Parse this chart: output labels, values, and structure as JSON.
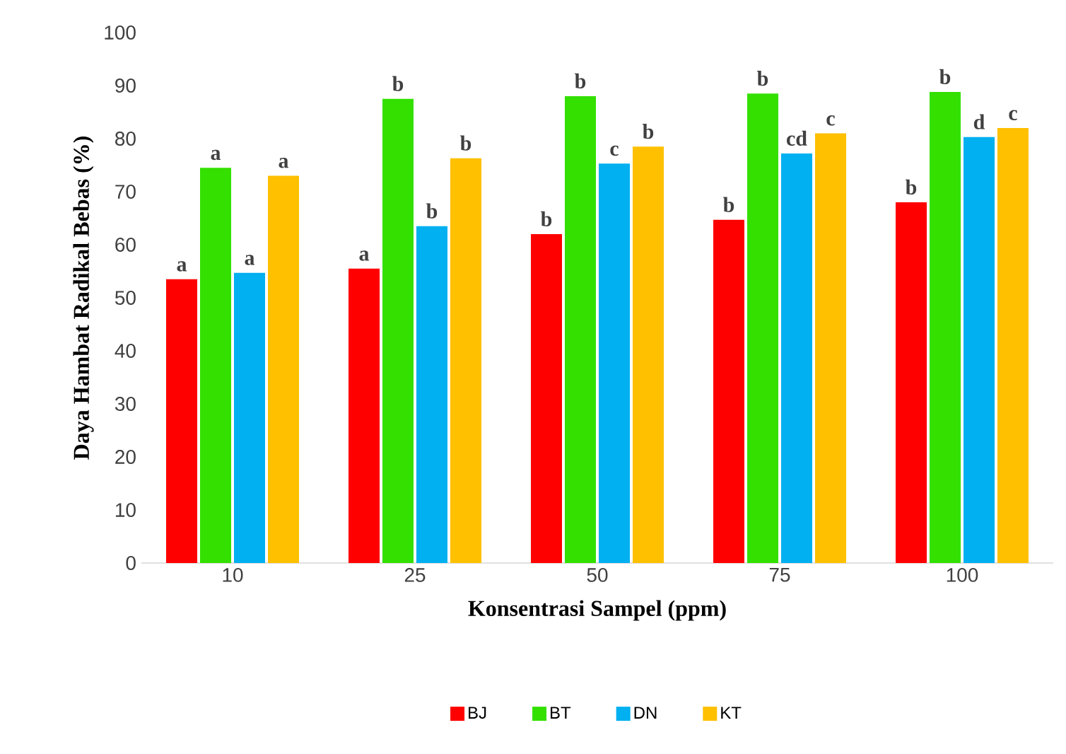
{
  "chart_data": {
    "type": "bar",
    "xlabel": "Konsentrasi Sampel (ppm)",
    "ylabel": "Daya Hambat Radikal Bebas (%)",
    "categories": [
      "10",
      "25",
      "50",
      "75",
      "100"
    ],
    "series": [
      {
        "name": "BJ",
        "color": "#ff0000",
        "values": [
          53.5,
          55.5,
          62,
          64.7,
          68
        ],
        "value_labels": [
          "a",
          "a",
          "b",
          "b",
          "b"
        ]
      },
      {
        "name": "BT",
        "color": "#33e000",
        "values": [
          74.5,
          87.5,
          88,
          88.5,
          88.8
        ],
        "value_labels": [
          "a",
          "b",
          "b",
          "b",
          "b"
        ]
      },
      {
        "name": "DN",
        "color": "#00b0f0",
        "values": [
          54.7,
          63.5,
          75.3,
          77.2,
          80.3
        ],
        "value_labels": [
          "a",
          "b",
          "c",
          "cd",
          "d"
        ]
      },
      {
        "name": "KT",
        "color": "#ffc000",
        "values": [
          73,
          76.3,
          78.5,
          81,
          82
        ],
        "value_labels": [
          "a",
          "b",
          "b",
          "c",
          "c"
        ]
      }
    ],
    "ylim": [
      0,
      100
    ],
    "yticks": [
      0,
      10,
      20,
      30,
      40,
      50,
      60,
      70,
      80,
      90,
      100
    ],
    "grid": false,
    "legend": "bottom"
  }
}
